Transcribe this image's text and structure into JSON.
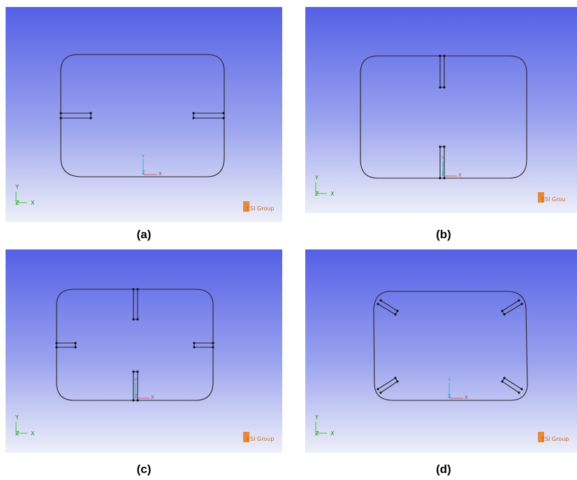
{
  "panels": [
    {
      "caption": "(a)",
      "logo": "ESI Group",
      "corner_axes": [
        "Y",
        "Z",
        "X"
      ],
      "origin_axes": [
        "Y",
        "Z",
        "X"
      ]
    },
    {
      "caption": "(b)",
      "logo": "ESI Grou",
      "corner_axes": [
        "Y",
        "Z",
        "X"
      ],
      "origin_axes": [
        "Y",
        "Z",
        "X"
      ]
    },
    {
      "caption": "(c)",
      "logo": "ESI Group",
      "corner_axes": [
        "Y",
        "Z",
        "X"
      ],
      "origin_axes": [
        "Y",
        "Z",
        "X"
      ]
    },
    {
      "caption": "(d)",
      "logo": "ESI Group",
      "corner_axes": [
        "Y",
        "Z",
        "X"
      ],
      "origin_axes": [
        "Y",
        "Z",
        "X"
      ]
    }
  ]
}
